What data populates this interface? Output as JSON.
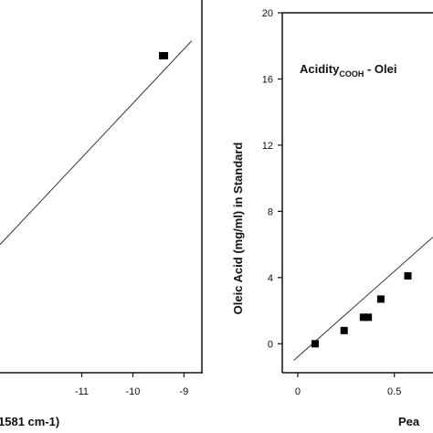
{
  "chart_data": [
    {
      "type": "scatter",
      "title": "",
      "xlabel": "1581 cm-1)",
      "ylabel": "",
      "xlim": [
        -12.6,
        -8.65
      ],
      "ylim": [
        -2.6,
        8.3
      ],
      "x_ticks": [
        -11,
        -10,
        -9
      ],
      "x_tick_labels": [
        "-11",
        "-10",
        "-9"
      ],
      "series": [
        {
          "points": [
            {
              "x": -9.4,
              "y": 7.0
            }
          ]
        }
      ],
      "fit_line": {
        "x": [
          -12.6,
          -8.85
        ],
        "y": [
          1.28,
          7.45
        ]
      },
      "grid": false
    },
    {
      "type": "scatter",
      "title": "",
      "annotation": {
        "main": "Acidity",
        "subscript": "COOH",
        "suffix": " - Olei"
      },
      "xlabel": "Pea",
      "ylabel": "Oleic Acid (mg/ml) in Standard",
      "xlim": [
        -0.08,
        0.7
      ],
      "ylim": [
        -1.75,
        20
      ],
      "x_ticks": [
        0,
        0.5
      ],
      "x_tick_labels": [
        "0",
        "0.5"
      ],
      "y_ticks": [
        0,
        4,
        8,
        12,
        16,
        20
      ],
      "y_tick_labels": [
        "0",
        "4",
        "8",
        "12",
        "16",
        "20"
      ],
      "series": [
        {
          "points": [
            {
              "x": 0.09,
              "y": 0.0
            },
            {
              "x": 0.24,
              "y": 0.8
            },
            {
              "x": 0.34,
              "y": 1.6
            },
            {
              "x": 0.365,
              "y": 1.6
            },
            {
              "x": 0.43,
              "y": 2.7
            },
            {
              "x": 0.57,
              "y": 4.1
            }
          ]
        }
      ],
      "fit_line": {
        "x": [
          -0.02,
          0.7
        ],
        "y": [
          -1.0,
          6.45
        ]
      },
      "grid": false
    }
  ]
}
